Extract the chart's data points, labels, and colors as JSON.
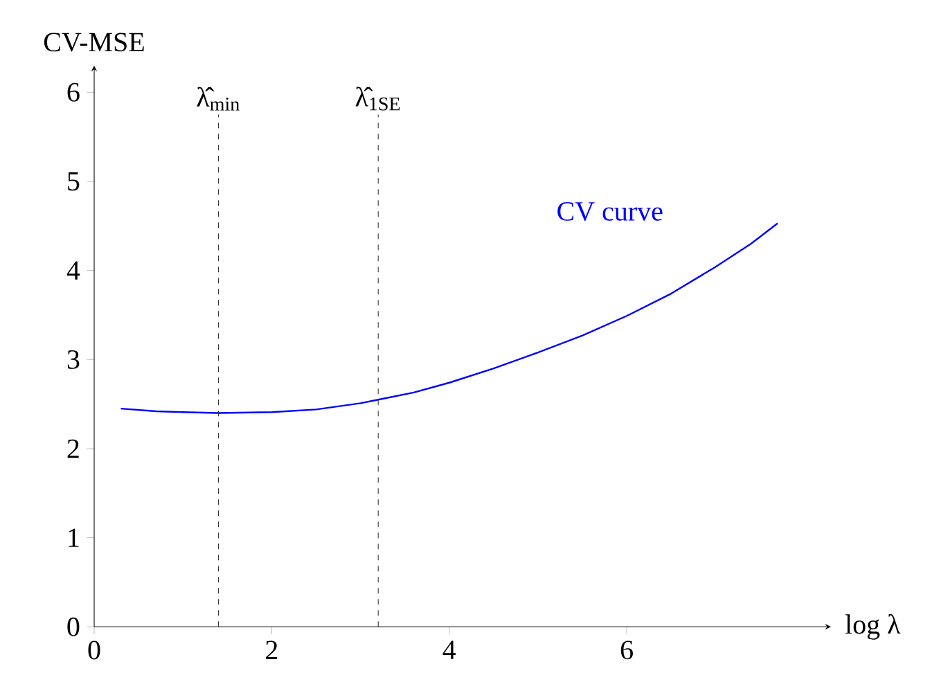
{
  "chart_data": {
    "type": "line",
    "ylabel": "CV-MSE",
    "xlabel": "log λ",
    "xlim": [
      0,
      8.3
    ],
    "ylim": [
      0,
      6.3
    ],
    "xticks": [
      0,
      2,
      4,
      6
    ],
    "yticks": [
      0,
      1,
      2,
      3,
      4,
      5,
      6
    ],
    "series": [
      {
        "color": "#0000ff",
        "x": [
          0.3,
          0.7,
          1.0,
          1.4,
          2.0,
          2.5,
          3.0,
          3.2,
          3.6,
          4.0,
          4.5,
          5.0,
          5.5,
          6.0,
          6.5,
          7.0,
          7.4,
          7.7
        ],
        "values": [
          2.45,
          2.42,
          2.41,
          2.4,
          2.41,
          2.44,
          2.51,
          2.55,
          2.63,
          2.74,
          2.9,
          3.08,
          3.27,
          3.49,
          3.74,
          4.04,
          4.3,
          4.53
        ]
      }
    ],
    "ref_lines": [
      {
        "axis": "x",
        "value": 1.4,
        "label": "λ̂$_{min}$",
        "color": "#333333",
        "line_style": "dashed"
      },
      {
        "axis": "x",
        "value": 3.2,
        "label": "λ̂$_{1SE}$",
        "color": "#333333",
        "line_style": "dashed"
      }
    ],
    "annotations": [
      "CV curve"
    ],
    "grid": false,
    "marker": "none",
    "line_style": "solid"
  }
}
